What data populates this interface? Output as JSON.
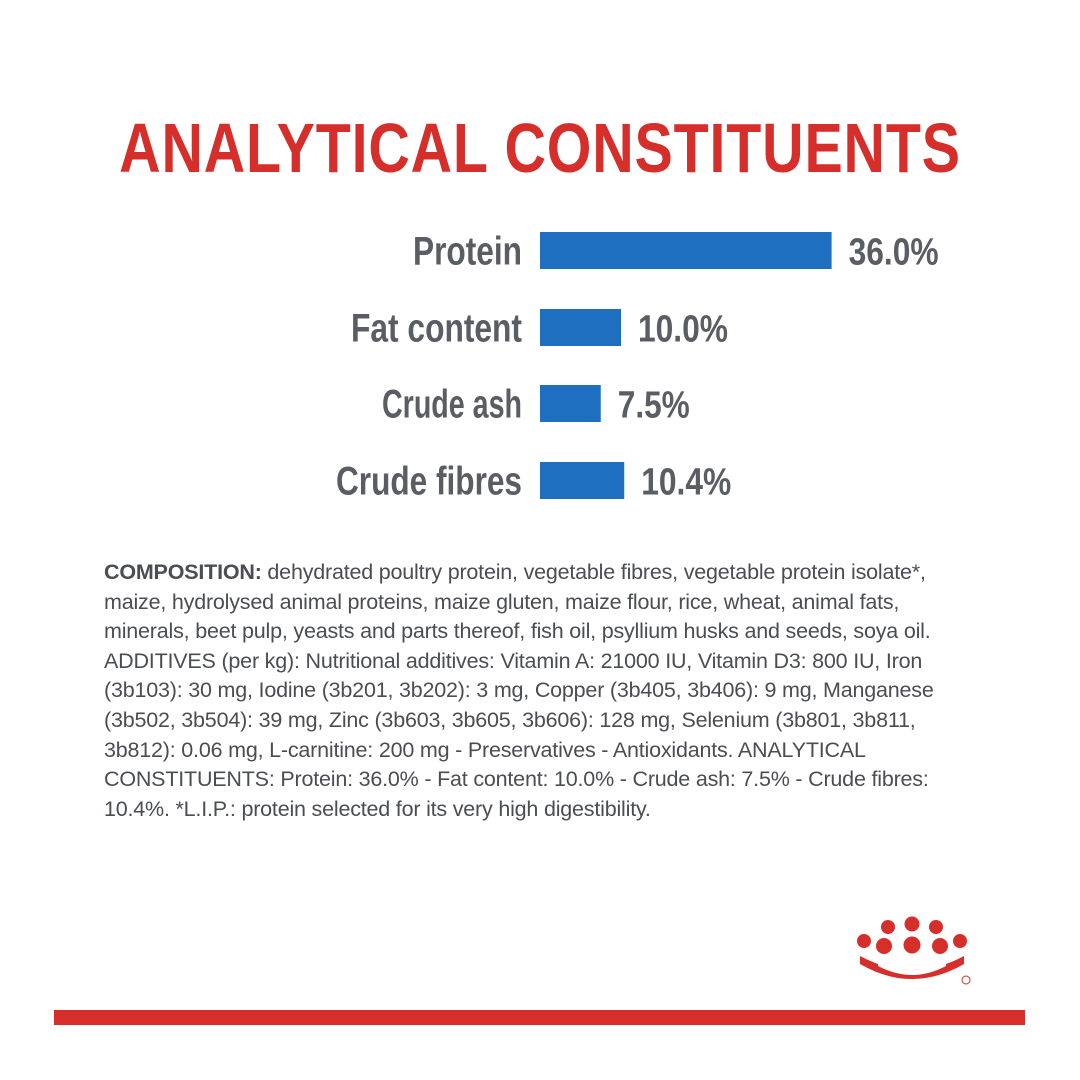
{
  "title": "ANALYTICAL CONSTITUENTS",
  "chart_data": {
    "type": "bar",
    "orientation": "horizontal",
    "categories": [
      "Protein",
      "Fat content",
      "Crude ash",
      "Crude fibres"
    ],
    "values": [
      36.0,
      10.0,
      7.5,
      10.4
    ],
    "value_labels": [
      "36.0%",
      "10.0%",
      "7.5%",
      "10.4%"
    ],
    "title": "ANALYTICAL CONSTITUENTS",
    "xlabel": "",
    "ylabel": "",
    "grid": false,
    "bar_color": "#1f6fc0"
  },
  "composition": {
    "label": "COMPOSITION:",
    "text": " dehydrated poultry protein, vegetable fibres, vegetable protein isolate*, maize, hydrolysed animal proteins, maize gluten, maize flour, rice, wheat, animal fats, minerals, beet pulp, yeasts and parts thereof, fish oil, psyllium husks and seeds, soya oil. ADDITIVES (per kg): Nutritional additives: Vitamin A: 21000 IU, Vitamin D3: 800 IU, Iron (3b103): 30 mg, Iodine (3b201, 3b202): 3 mg, Copper (3b405, 3b406): 9 mg, Manganese (3b502, 3b504): 39 mg, Zinc (3b603, 3b605, 3b606): 128 mg, Selenium (3b801, 3b811, 3b812): 0.06 mg, L-carnitine: 200 mg - Preservatives - Antioxidants. ANALYTICAL CONSTITUENTS: Protein: 36.0% - Fat content: 10.0% - Crude ash: 7.5% - Crude fibres: 10.4%. *L.I.P.: protein selected for its very high digestibility."
  },
  "colors": {
    "brand_red": "#d62e2a",
    "bar_blue": "#1f6fc0",
    "text_gray": "#5a5d63"
  },
  "logo": {
    "icon": "crown-icon"
  }
}
